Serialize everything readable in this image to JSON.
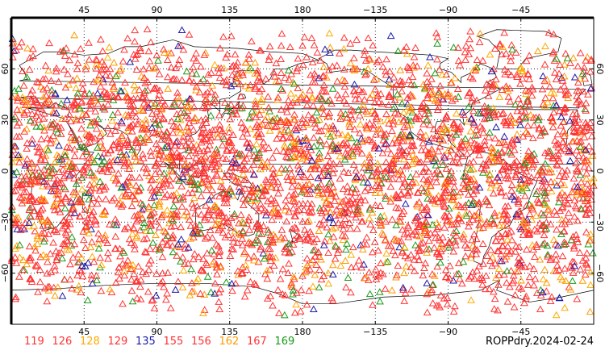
{
  "chart_data": {
    "type": "scatter",
    "title": "ROPPdry.2024-02-24",
    "marker": "triangle-outline",
    "projection": "cylindrical-equidistant",
    "x_axis": {
      "range": [
        0,
        360
      ],
      "bottom_ticks": [
        "45",
        "90",
        "135",
        "180",
        "−135",
        "−90",
        "−45"
      ],
      "top_ticks": [
        "45",
        "90",
        "135",
        "180",
        "−135",
        "−90",
        "−45"
      ],
      "tick_values": [
        45,
        90,
        135,
        180,
        225,
        270,
        315
      ]
    },
    "y_axis": {
      "range": [
        -90,
        90
      ],
      "ticks": [
        "60",
        "30",
        "0",
        "−30",
        "−60"
      ],
      "tick_values": [
        60,
        30,
        0,
        -30,
        -60
      ]
    },
    "grid": "dotted",
    "series": [
      {
        "name": "119",
        "color": "#ff3333"
      },
      {
        "name": "126",
        "color": "#ff3333"
      },
      {
        "name": "128",
        "color": "#ffaa00"
      },
      {
        "name": "129",
        "color": "#ff3333"
      },
      {
        "name": "135",
        "color": "#1a1aaa"
      },
      {
        "name": "155",
        "color": "#ff3333"
      },
      {
        "name": "156",
        "color": "#ff3333"
      },
      {
        "name": "162",
        "color": "#ff9900"
      },
      {
        "name": "167",
        "color": "#ff3333"
      },
      {
        "name": "169",
        "color": "#1a9a1a"
      }
    ],
    "approx_marker_count": 4000,
    "legend_position": "bottom-left"
  }
}
